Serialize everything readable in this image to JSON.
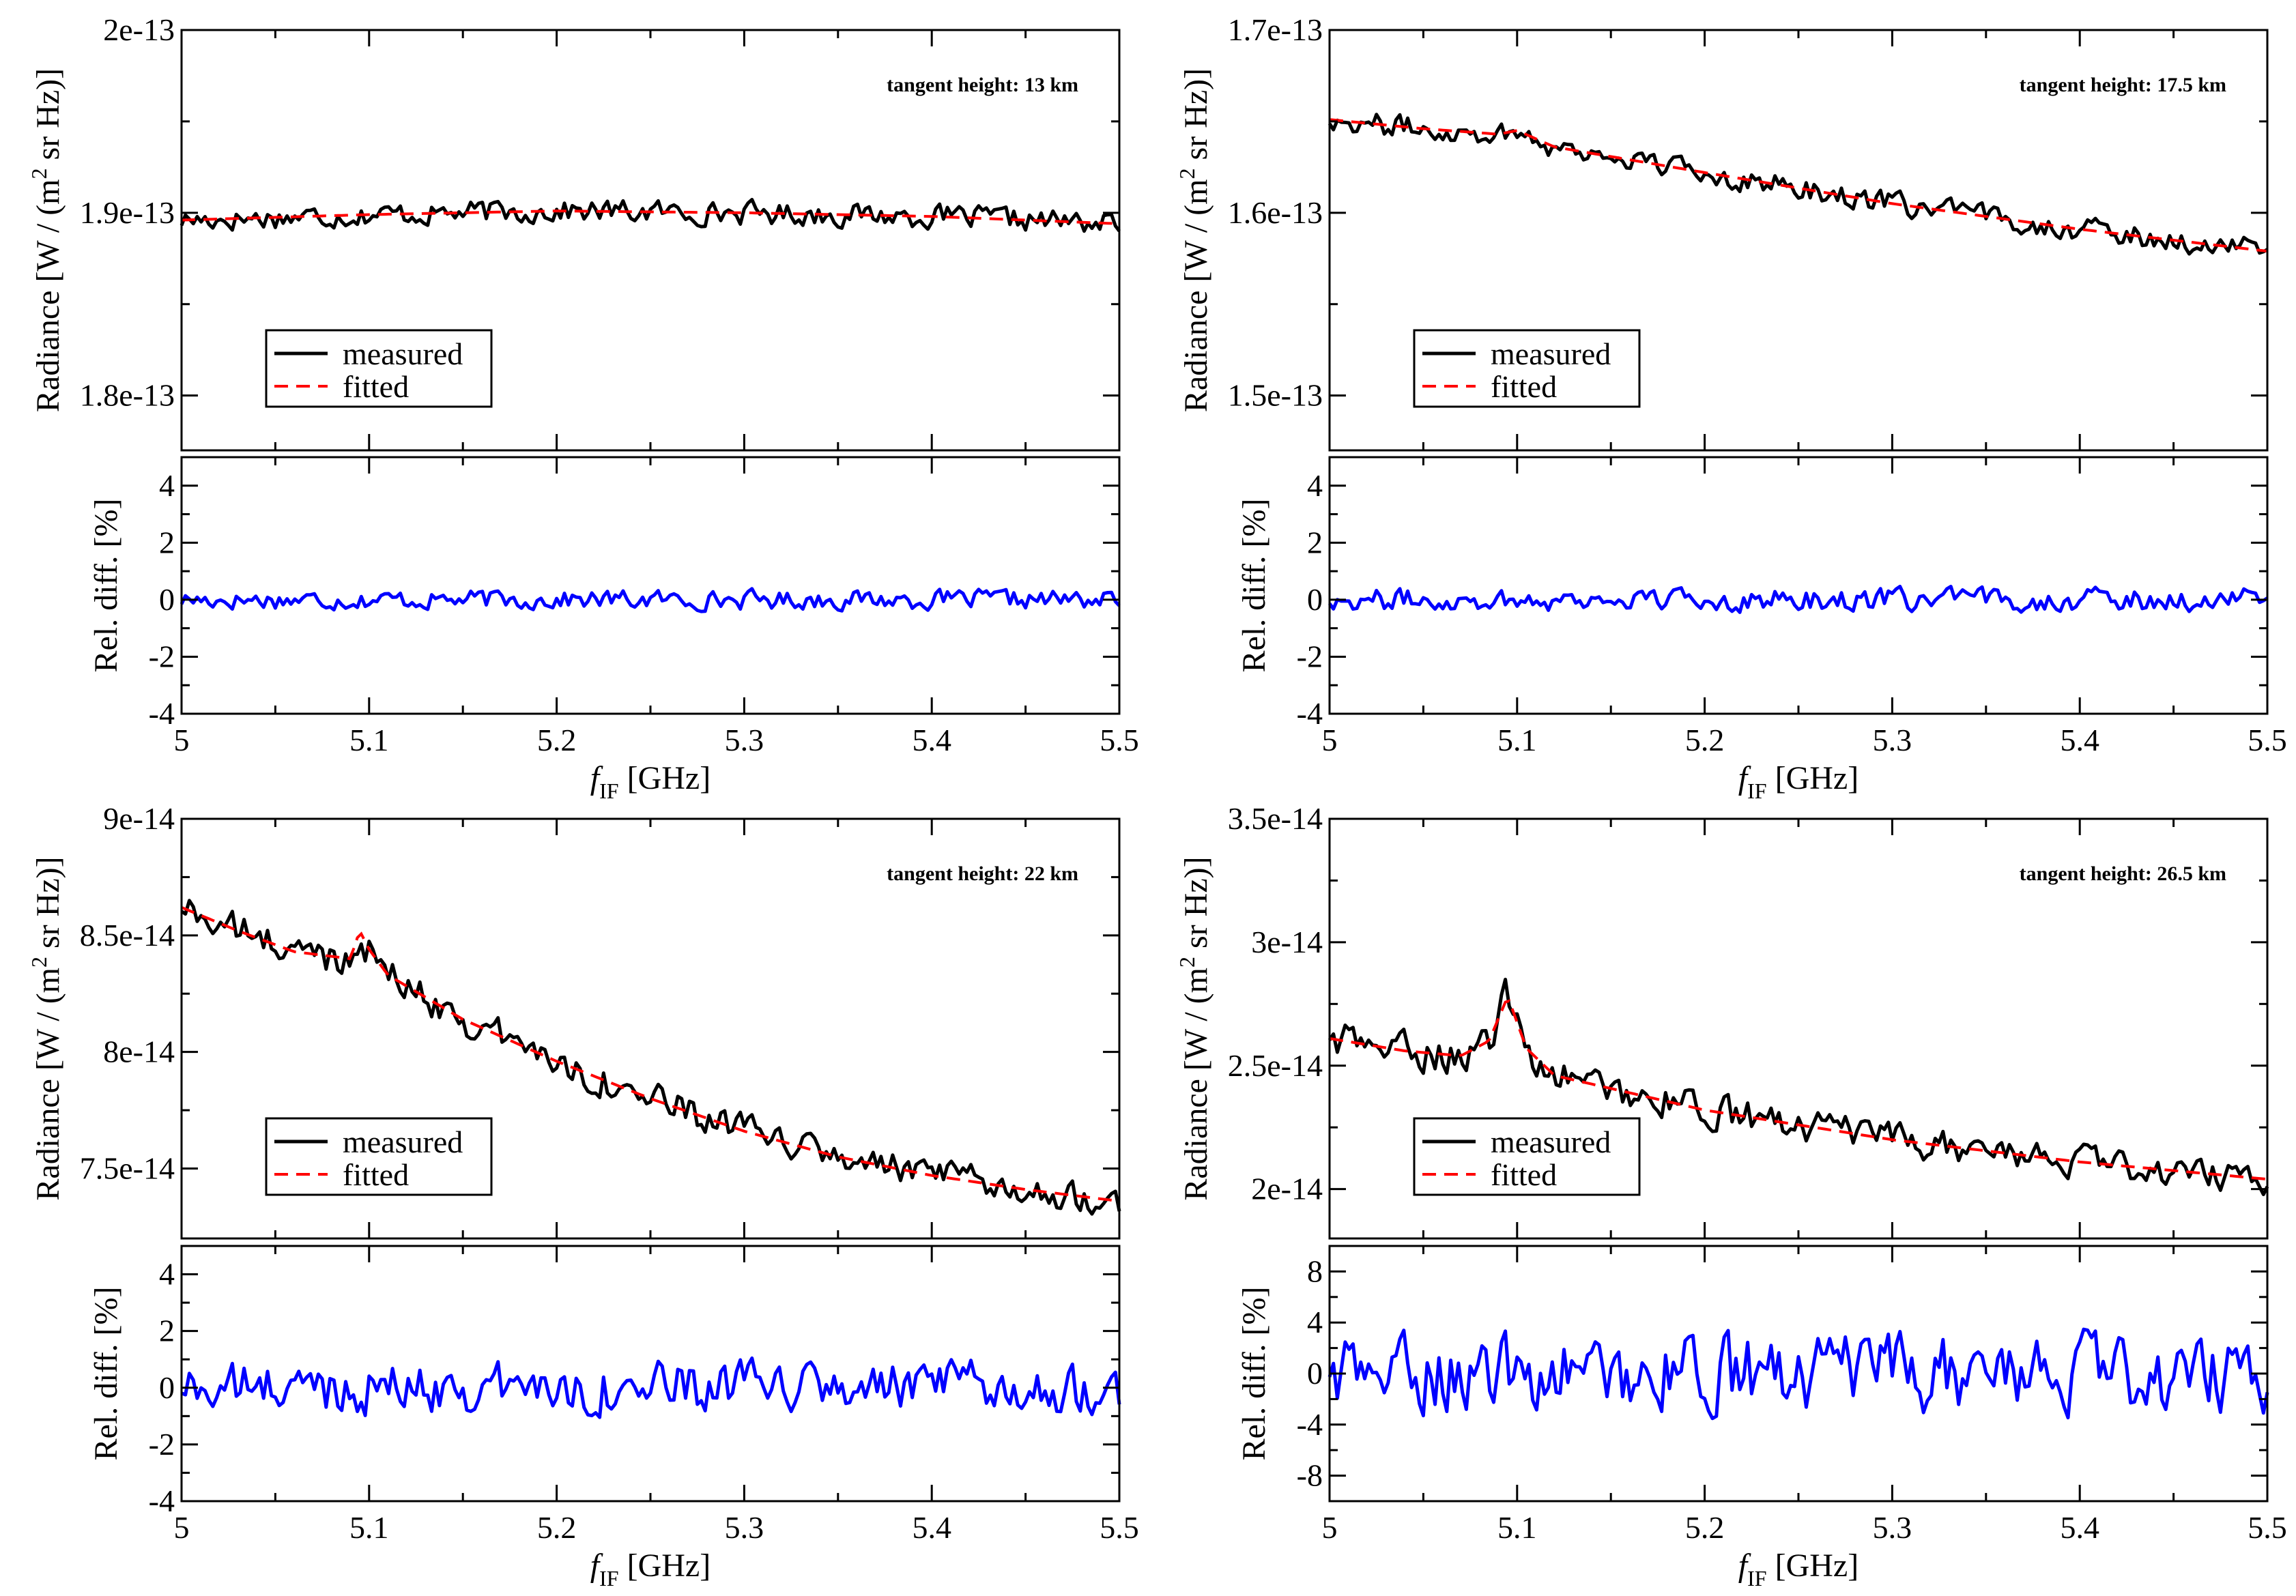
{
  "figure": {
    "colors": {
      "measured": "#000000",
      "fitted": "#ff0000",
      "reldiff": "#0000ff"
    }
  },
  "panels": [
    {
      "id": "p1",
      "annotation": "tangent height: 13 km",
      "top": {
        "ylabel_main": "Radiance [W / (m",
        "ylabel_sup": "2",
        "ylabel_tail": " sr Hz)]",
        "ylim": [
          1.77e-13,
          2e-13
        ],
        "yticks": [
          1.8e-13,
          1.9e-13,
          2e-13
        ],
        "ytick_labels": [
          "1.8e-13",
          "1.9e-13",
          "2e-13"
        ],
        "legend": [
          "measured",
          "fitted"
        ],
        "fitted": [
          [
            5.0,
            1.896e-13
          ],
          [
            5.1,
            1.899e-13
          ],
          [
            5.2,
            1.901e-13
          ],
          [
            5.3,
            1.9e-13
          ],
          [
            5.4,
            1.898e-13
          ],
          [
            5.5,
            1.894e-13
          ]
        ]
      },
      "bottom": {
        "ylabel": "Rel. diff. [%]",
        "ylim": [
          -4,
          5
        ],
        "yticks": [
          -4,
          -2,
          0,
          2,
          4
        ],
        "ytick_labels": [
          "-4",
          "-2",
          "0",
          "2",
          "4"
        ],
        "amp": 0.3
      },
      "xlabel": "f",
      "xlabel_sub": "IF",
      "xlabel_tail": " [GHz]",
      "xlim": [
        5.0,
        5.5
      ],
      "xticks": [
        5.0,
        5.1,
        5.2,
        5.3,
        5.4,
        5.5
      ],
      "xtick_labels": [
        "5",
        "5.1",
        "5.2",
        "5.3",
        "5.4",
        "5.5"
      ]
    },
    {
      "id": "p2",
      "annotation": "tangent height: 17.5 km",
      "top": {
        "ylabel_main": "Radiance [W / (m",
        "ylabel_sup": "2",
        "ylabel_tail": " sr Hz)]",
        "ylim": [
          1.47e-13,
          1.7e-13
        ],
        "yticks": [
          1.5e-13,
          1.6e-13,
          1.7e-13
        ],
        "ytick_labels": [
          "1.5e-13",
          "1.6e-13",
          "1.7e-13"
        ],
        "legend": [
          "measured",
          "fitted"
        ],
        "fitted": [
          [
            5.0,
            1.651e-13
          ],
          [
            5.05,
            1.646e-13
          ],
          [
            5.09,
            1.643e-13
          ],
          [
            5.1,
            1.645e-13
          ],
          [
            5.12,
            1.636e-13
          ],
          [
            5.2,
            1.622e-13
          ],
          [
            5.3,
            1.605e-13
          ],
          [
            5.4,
            1.591e-13
          ],
          [
            5.5,
            1.579e-13
          ]
        ]
      },
      "bottom": {
        "ylabel": "Rel. diff. [%]",
        "ylim": [
          -4,
          5
        ],
        "yticks": [
          -4,
          -2,
          0,
          2,
          4
        ],
        "ytick_labels": [
          "-4",
          "-2",
          "0",
          "2",
          "4"
        ],
        "amp": 0.35
      },
      "xlabel": "f",
      "xlabel_sub": "IF",
      "xlabel_tail": " [GHz]",
      "xlim": [
        5.0,
        5.5
      ],
      "xticks": [
        5.0,
        5.1,
        5.2,
        5.3,
        5.4,
        5.5
      ],
      "xtick_labels": [
        "5",
        "5.1",
        "5.2",
        "5.3",
        "5.4",
        "5.5"
      ]
    },
    {
      "id": "p3",
      "annotation": "tangent height: 22 km",
      "top": {
        "ylabel_main": "Radiance [W / (m",
        "ylabel_sup": "2",
        "ylabel_tail": " sr Hz)]",
        "ylim": [
          7.2e-14,
          9e-14
        ],
        "yticks": [
          7.5e-14,
          8e-14,
          8.5e-14,
          9e-14
        ],
        "ytick_labels": [
          "7.5e-14",
          "8e-14",
          "8.5e-14",
          "9e-14"
        ],
        "legend": [
          "measured",
          "fitted"
        ],
        "fitted": [
          [
            5.0,
            8.62e-14
          ],
          [
            5.03,
            8.52e-14
          ],
          [
            5.06,
            8.43e-14
          ],
          [
            5.09,
            8.4e-14
          ],
          [
            5.095,
            8.52e-14
          ],
          [
            5.1,
            8.44e-14
          ],
          [
            5.11,
            8.33e-14
          ],
          [
            5.15,
            8.14e-14
          ],
          [
            5.2,
            7.96e-14
          ],
          [
            5.25,
            7.8e-14
          ],
          [
            5.3,
            7.66e-14
          ],
          [
            5.35,
            7.55e-14
          ],
          [
            5.4,
            7.47e-14
          ],
          [
            5.45,
            7.41e-14
          ],
          [
            5.5,
            7.36e-14
          ]
        ]
      },
      "bottom": {
        "ylabel": "Rel. diff. [%]",
        "ylim": [
          -4,
          5
        ],
        "yticks": [
          -4,
          -2,
          0,
          2,
          4
        ],
        "ytick_labels": [
          "-4",
          "-2",
          "0",
          "2",
          "4"
        ],
        "amp": 0.8
      },
      "xlabel": "f",
      "xlabel_sub": "IF",
      "xlabel_tail": " [GHz]",
      "xlim": [
        5.0,
        5.5
      ],
      "xticks": [
        5.0,
        5.1,
        5.2,
        5.3,
        5.4,
        5.5
      ],
      "xtick_labels": [
        "5",
        "5.1",
        "5.2",
        "5.3",
        "5.4",
        "5.5"
      ]
    },
    {
      "id": "p4",
      "annotation": "tangent height: 26.5 km",
      "top": {
        "ylabel_main": "Radiance [W / (m",
        "ylabel_sup": "2",
        "ylabel_tail": " sr Hz)]",
        "ylim": [
          1.8e-14,
          3.5e-14
        ],
        "yticks": [
          2e-14,
          2.5e-14,
          3e-14,
          3.5e-14
        ],
        "ytick_labels": [
          "2e-14",
          "2.5e-14",
          "3e-14",
          "3.5e-14"
        ],
        "legend": [
          "measured",
          "fitted"
        ],
        "fitted": [
          [
            5.0,
            2.61e-14
          ],
          [
            5.04,
            2.56e-14
          ],
          [
            5.07,
            2.54e-14
          ],
          [
            5.085,
            2.6e-14
          ],
          [
            5.095,
            2.78e-14
          ],
          [
            5.105,
            2.57e-14
          ],
          [
            5.12,
            2.46e-14
          ],
          [
            5.2,
            2.32e-14
          ],
          [
            5.3,
            2.2e-14
          ],
          [
            5.4,
            2.11e-14
          ],
          [
            5.5,
            2.04e-14
          ]
        ]
      },
      "bottom": {
        "ylabel": "Rel. diff. [%]",
        "ylim": [
          -10,
          10
        ],
        "yticks": [
          -8,
          -4,
          0,
          4,
          8
        ],
        "ytick_labels": [
          "-8",
          "-4",
          "0",
          "4",
          "8"
        ],
        "amp": 2.6
      },
      "xlabel": "f",
      "xlabel_sub": "IF",
      "xlabel_tail": " [GHz]",
      "xlim": [
        5.0,
        5.5
      ],
      "xticks": [
        5.0,
        5.1,
        5.2,
        5.3,
        5.4,
        5.5
      ],
      "xtick_labels": [
        "5",
        "5.1",
        "5.2",
        "5.3",
        "5.4",
        "5.5"
      ]
    }
  ],
  "chart_data": [
    {
      "type": "line",
      "title": "tangent height: 13 km",
      "xlabel": "f_IF [GHz]",
      "ylabel": "Radiance [W / (m^2 sr Hz)]",
      "series": [
        {
          "name": "measured"
        },
        {
          "name": "fitted"
        }
      ],
      "x_range": [
        5.0,
        5.5
      ],
      "ylim": [
        1.77e-13,
        2e-13
      ]
    },
    {
      "type": "line",
      "title": "tangent height: 17.5 km",
      "xlabel": "f_IF [GHz]",
      "ylabel": "Radiance [W / (m^2 sr Hz)]",
      "series": [
        {
          "name": "measured"
        },
        {
          "name": "fitted"
        }
      ],
      "x_range": [
        5.0,
        5.5
      ],
      "ylim": [
        1.47e-13,
        1.7e-13
      ]
    },
    {
      "type": "line",
      "title": "tangent height: 22 km",
      "xlabel": "f_IF [GHz]",
      "ylabel": "Radiance [W / (m^2 sr Hz)]",
      "series": [
        {
          "name": "measured"
        },
        {
          "name": "fitted"
        }
      ],
      "x_range": [
        5.0,
        5.5
      ],
      "ylim": [
        7.2e-14,
        9e-14
      ]
    },
    {
      "type": "line",
      "title": "tangent height: 26.5 km",
      "xlabel": "f_IF [GHz]",
      "ylabel": "Radiance [W / (m^2 sr Hz)]",
      "series": [
        {
          "name": "measured"
        },
        {
          "name": "fitted"
        }
      ],
      "x_range": [
        5.0,
        5.5
      ],
      "ylim": [
        1.8e-14,
        3.5e-14
      ]
    }
  ]
}
